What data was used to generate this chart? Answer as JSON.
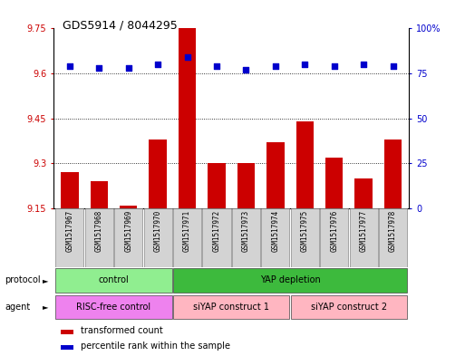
{
  "title": "GDS5914 / 8044295",
  "samples": [
    "GSM1517967",
    "GSM1517968",
    "GSM1517969",
    "GSM1517970",
    "GSM1517971",
    "GSM1517972",
    "GSM1517973",
    "GSM1517974",
    "GSM1517975",
    "GSM1517976",
    "GSM1517977",
    "GSM1517978"
  ],
  "transformed_counts": [
    9.27,
    9.24,
    9.16,
    9.38,
    9.75,
    9.3,
    9.3,
    9.37,
    9.44,
    9.32,
    9.25,
    9.38
  ],
  "percentile_ranks": [
    79,
    78,
    78,
    80,
    84,
    79,
    77,
    79,
    80,
    79,
    80,
    79
  ],
  "ylim_left": [
    9.15,
    9.75
  ],
  "ylim_right": [
    0,
    100
  ],
  "yticks_left": [
    9.15,
    9.3,
    9.45,
    9.6,
    9.75
  ],
  "yticks_right": [
    0,
    25,
    50,
    75,
    100
  ],
  "ytick_labels_left": [
    "9.15",
    "9.3",
    "9.45",
    "9.6",
    "9.75"
  ],
  "ytick_labels_right": [
    "0",
    "25",
    "50",
    "75",
    "100%"
  ],
  "bar_color": "#cc0000",
  "dot_color": "#0000cc",
  "bar_bottom": 9.15,
  "grid_lines": [
    9.3,
    9.45,
    9.6
  ],
  "protocol_data": [
    {
      "text": "control",
      "start": 0,
      "end": 3,
      "color": "#90ee90"
    },
    {
      "text": "YAP depletion",
      "start": 4,
      "end": 11,
      "color": "#3dba3d"
    }
  ],
  "agent_data": [
    {
      "text": "RISC-free control",
      "start": 0,
      "end": 3,
      "color": "#ee82ee"
    },
    {
      "text": "siYAP construct 1",
      "start": 4,
      "end": 7,
      "color": "#ffb6c1"
    },
    {
      "text": "siYAP construct 2",
      "start": 8,
      "end": 11,
      "color": "#ffb6c1"
    }
  ],
  "legend_items": [
    {
      "color": "#cc0000",
      "label": "transformed count"
    },
    {
      "color": "#0000cc",
      "label": "percentile rank within the sample"
    }
  ],
  "left_axis_color": "#cc0000",
  "right_axis_color": "#0000cc",
  "background_color": "#ffffff",
  "tick_bg_color": "#d3d3d3",
  "title_fontsize": 9,
  "label_fontsize": 7,
  "sample_fontsize": 5.5
}
